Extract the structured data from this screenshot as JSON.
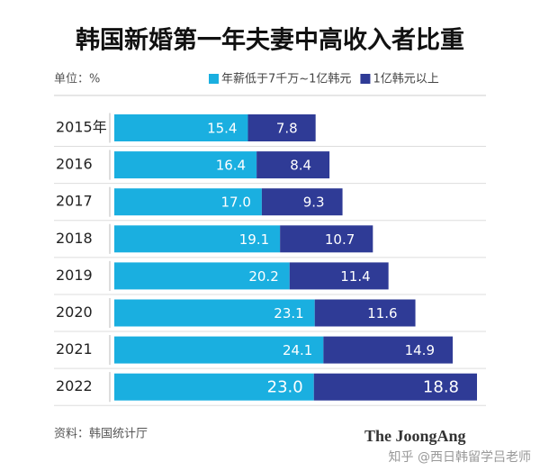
{
  "chart_data": {
    "type": "stacked-bar-horizontal",
    "title": "韩国新婚第一年夫妻中高收入者比重",
    "unit_label": "单位：%",
    "source": "资料：韩国统计厅",
    "publisher": "The JoongAng",
    "watermark": "知乎 @西日韩留学吕老师",
    "categories": [
      "2015年",
      "2016",
      "2017",
      "2018",
      "2019",
      "2020",
      "2021",
      "2022"
    ],
    "series": [
      {
        "name": "年薪低于7千万~1亿韩元",
        "color": "#1aafe0",
        "values": [
          15.4,
          16.4,
          17.0,
          19.1,
          20.2,
          23.1,
          24.1,
          23.0
        ],
        "value_labels": [
          "15.4",
          "16.4",
          "17.0",
          "19.1",
          "20.2",
          "23.1",
          "24.1",
          "23.0"
        ]
      },
      {
        "name": "1亿韩元以上",
        "color": "#2f3b96",
        "values": [
          7.8,
          8.4,
          9.3,
          10.7,
          11.4,
          11.6,
          14.9,
          18.8
        ],
        "value_labels": [
          "7.8",
          "8.4",
          "9.3",
          "10.7",
          "11.4",
          "11.6",
          "14.9",
          "18.8"
        ]
      }
    ]
  }
}
